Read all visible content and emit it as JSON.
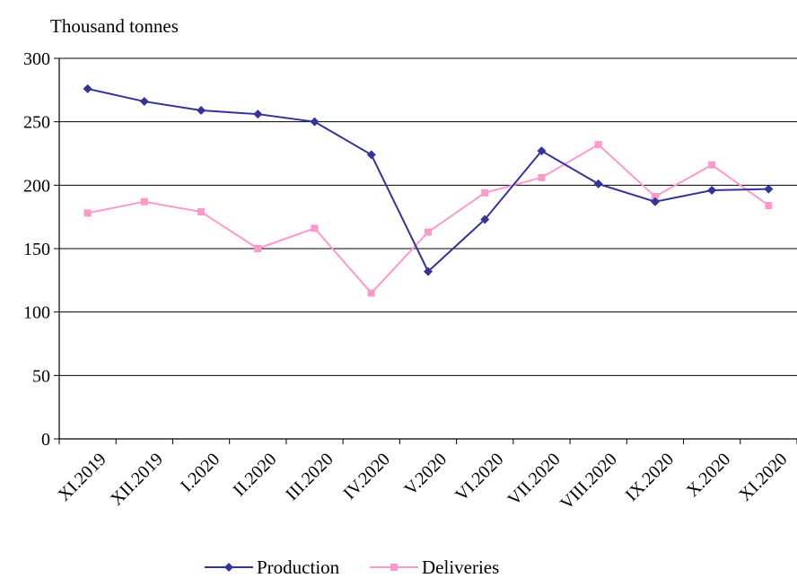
{
  "chart_data": {
    "type": "line",
    "title": "",
    "ylabel": "Thousand tonnes",
    "xlabel": "",
    "ylim": [
      0,
      300
    ],
    "yticks": [
      0,
      50,
      100,
      150,
      200,
      250,
      300
    ],
    "grid": "horizontal",
    "legend": "bottom",
    "categories": [
      "XI.2019",
      "XII.2019",
      "I.2020",
      "II.2020",
      "III.2020",
      "IV.2020",
      "V.2020",
      "VI.2020",
      "VII.2020",
      "VIII.2020",
      "IX.2020",
      "X.2020",
      "XI.2020"
    ],
    "series": [
      {
        "name": "Production",
        "color": "#333399",
        "marker": "diamond",
        "values": [
          276,
          266,
          259,
          256,
          250,
          224,
          132,
          173,
          227,
          201,
          187,
          196,
          197
        ]
      },
      {
        "name": "Deliveries",
        "color": "#FF99CC",
        "marker": "square",
        "values": [
          178,
          187,
          179,
          150,
          166,
          115,
          163,
          194,
          206,
          232,
          191,
          216,
          184
        ]
      }
    ]
  }
}
